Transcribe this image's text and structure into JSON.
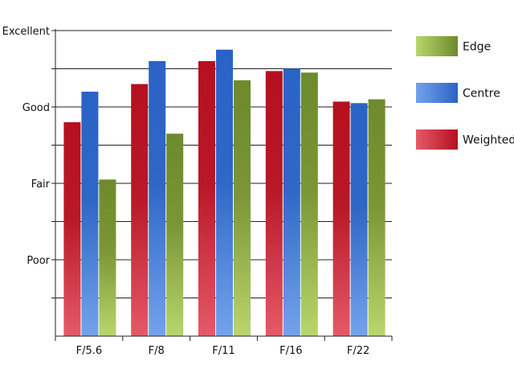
{
  "chart_data": {
    "type": "bar",
    "categories": [
      "F/5.6",
      "F/8",
      "F/11",
      "F/16",
      "F/22"
    ],
    "y_tick_labels": [
      "Poor",
      "Fair",
      "Good",
      "Excellent"
    ],
    "y_tick_values": [
      1,
      2,
      3,
      4
    ],
    "ylim": [
      0,
      4
    ],
    "grid": true,
    "legend_position": "right",
    "legend_order": [
      "Edge",
      "Centre",
      "Weighted"
    ],
    "series": [
      {
        "name": "Weighted",
        "color": "#c0202e",
        "values": [
          2.8,
          3.3,
          3.6,
          3.47,
          3.07
        ]
      },
      {
        "name": "Centre",
        "color": "#3a6fc8",
        "values": [
          3.2,
          3.6,
          3.75,
          3.5,
          3.05
        ]
      },
      {
        "name": "Edge",
        "color": "#7f9a3a",
        "values": [
          2.05,
          2.65,
          3.35,
          3.45,
          3.1
        ]
      }
    ]
  }
}
